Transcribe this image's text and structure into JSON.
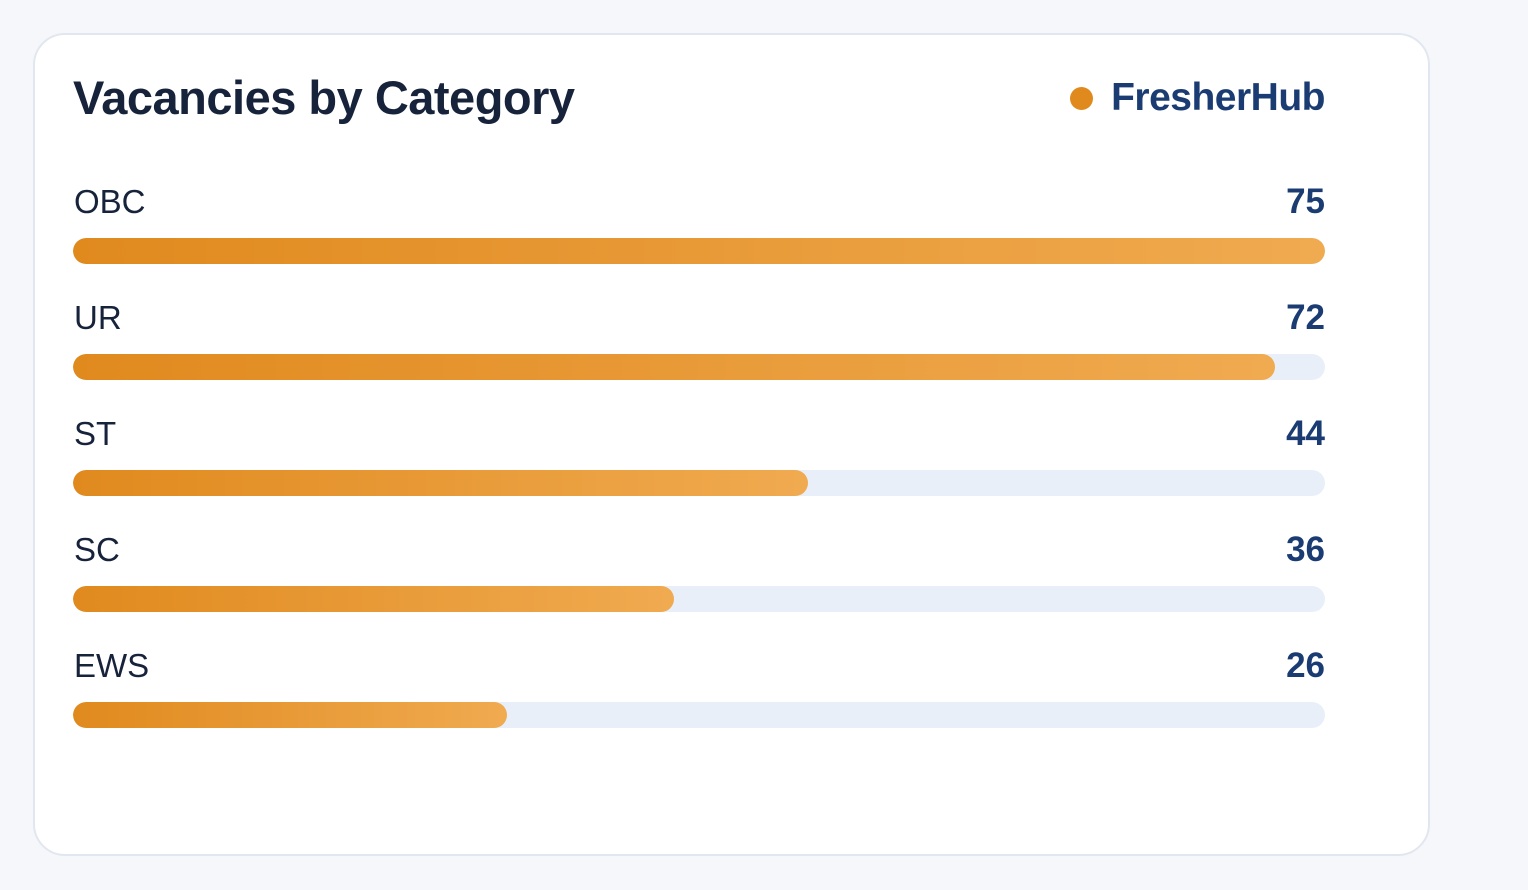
{
  "chart_data": {
    "type": "bar",
    "orientation": "horizontal",
    "title": "Vacancies by Category",
    "legend": {
      "label": "FresherHub",
      "placement": "top-right"
    },
    "categories": [
      "OBC",
      "UR",
      "ST",
      "SC",
      "EWS"
    ],
    "values": [
      75,
      72,
      44,
      36,
      26
    ],
    "max": 75,
    "grid": false
  },
  "colors": {
    "bar_start": "#e08a1e",
    "bar_end": "#f0aa50",
    "track": "#e9eff9",
    "legend_dot": "#e08a1e",
    "title": "#17233b",
    "value": "#1a3c72"
  }
}
